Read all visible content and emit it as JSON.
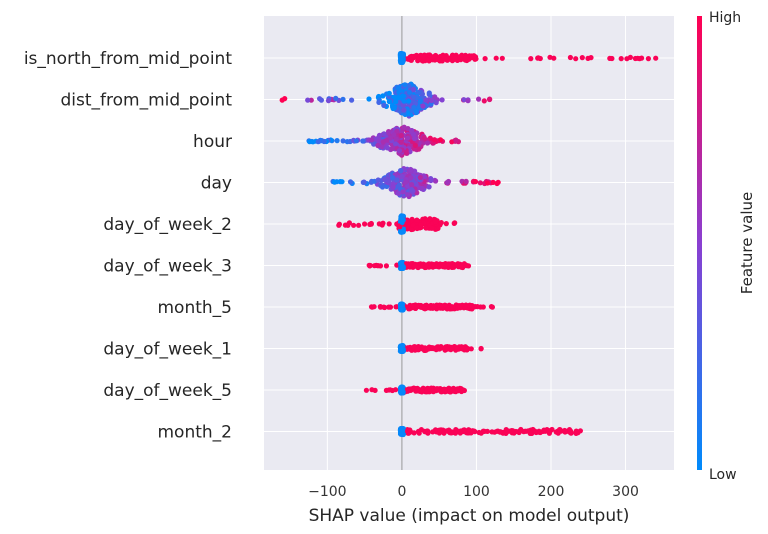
{
  "chart_data": {
    "type": "scatter",
    "subtype": "shap-beeswarm",
    "title": "",
    "xlabel": "SHAP value (impact on model output)",
    "ylabel": "",
    "xlim": [
      -185,
      365
    ],
    "xticks": [
      -100,
      0,
      100,
      200,
      300
    ],
    "xtick_labels": [
      "−100",
      "0",
      "100",
      "200",
      "300"
    ],
    "grid": true,
    "colorbar": {
      "title": "Feature value",
      "high_label": "High",
      "low_label": "Low",
      "low_color": "#008bfb",
      "mid_color": "#8a3fd1",
      "high_color": "#ff0052"
    },
    "colors": {
      "background": "#eaeaf2",
      "grid": "#ffffff",
      "zero_line": "#999999"
    },
    "features": [
      {
        "name": "is_north_from_mid_point",
        "min": -2,
        "max": 345,
        "core": [
          0,
          100
        ],
        "spread": 0.12,
        "color_rule": "binary"
      },
      {
        "name": "dist_from_mid_point",
        "min": -162,
        "max": 118,
        "core": [
          -40,
          55
        ],
        "spread": 0.42,
        "color_rule": "mixed"
      },
      {
        "name": "hour",
        "min": -130,
        "max": 85,
        "core": [
          -50,
          50
        ],
        "spread": 0.36,
        "color_rule": "increasing"
      },
      {
        "name": "day",
        "min": -98,
        "max": 130,
        "core": [
          -40,
          50
        ],
        "spread": 0.38,
        "color_rule": "increasing"
      },
      {
        "name": "day_of_week_2",
        "min": -88,
        "max": 72,
        "core": [
          -5,
          50
        ],
        "spread": 0.22,
        "color_rule": "binary"
      },
      {
        "name": "day_of_week_3",
        "min": -55,
        "max": 100,
        "core": [
          0,
          85
        ],
        "spread": 0.08,
        "color_rule": "binary"
      },
      {
        "name": "month_5",
        "min": -52,
        "max": 125,
        "core": [
          0,
          95
        ],
        "spread": 0.08,
        "color_rule": "binary"
      },
      {
        "name": "day_of_week_1",
        "min": -10,
        "max": 110,
        "core": [
          0,
          90
        ],
        "spread": 0.08,
        "color_rule": "binary"
      },
      {
        "name": "day_of_week_5",
        "min": -48,
        "max": 84,
        "core": [
          0,
          80
        ],
        "spread": 0.08,
        "color_rule": "binary"
      },
      {
        "name": "month_2",
        "min": -2,
        "max": 240,
        "core": [
          0,
          240
        ],
        "spread": 0.08,
        "color_rule": "binary"
      }
    ]
  }
}
